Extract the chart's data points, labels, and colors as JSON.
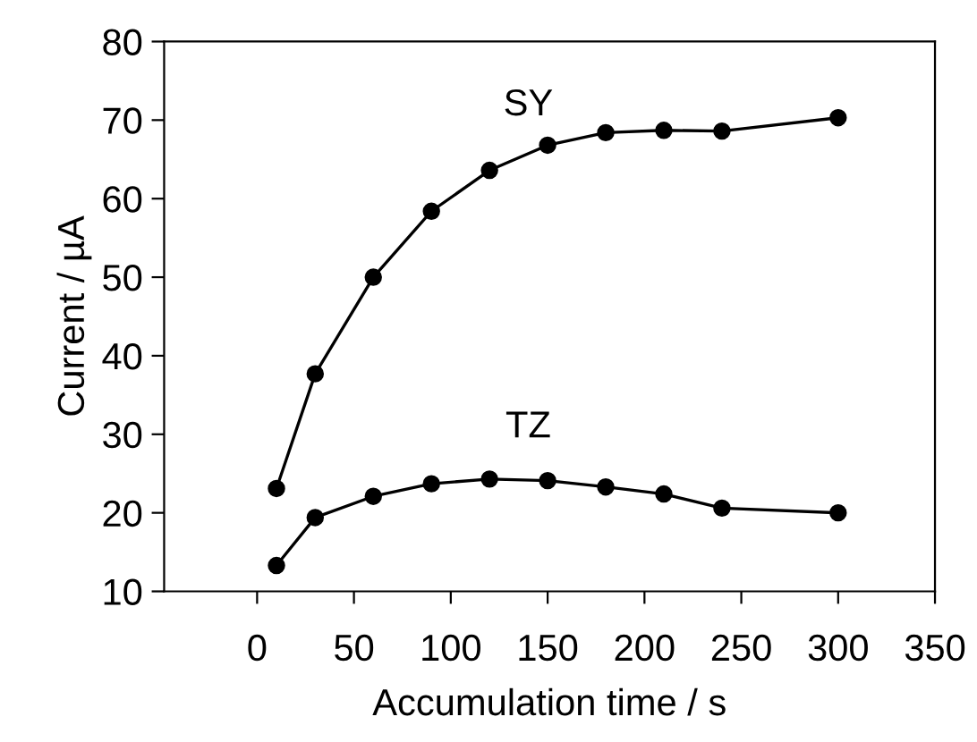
{
  "chart_data": {
    "type": "line",
    "xlabel": "Accumulation time / s",
    "ylabel": "Current / µA",
    "x": [
      10,
      30,
      60,
      90,
      120,
      150,
      180,
      210,
      240,
      300
    ],
    "series": [
      {
        "name": "SY",
        "color": "#000000",
        "values": [
          23.1,
          37.7,
          50.0,
          58.4,
          63.6,
          66.8,
          68.4,
          68.7,
          68.6,
          70.3
        ]
      },
      {
        "name": "TZ",
        "color": "#000000",
        "values": [
          13.3,
          19.4,
          22.1,
          23.7,
          24.3,
          24.1,
          23.3,
          22.4,
          20.6,
          20.0
        ]
      }
    ],
    "xlim": [
      -48,
      350
    ],
    "ylim": [
      10,
      80
    ],
    "xticks": [
      0,
      50,
      100,
      150,
      200,
      250,
      300,
      350
    ],
    "yticks": [
      10,
      20,
      30,
      40,
      50,
      60,
      70,
      80
    ],
    "marker": "circle",
    "line_style": "solid",
    "grid": false,
    "legend": false
  }
}
